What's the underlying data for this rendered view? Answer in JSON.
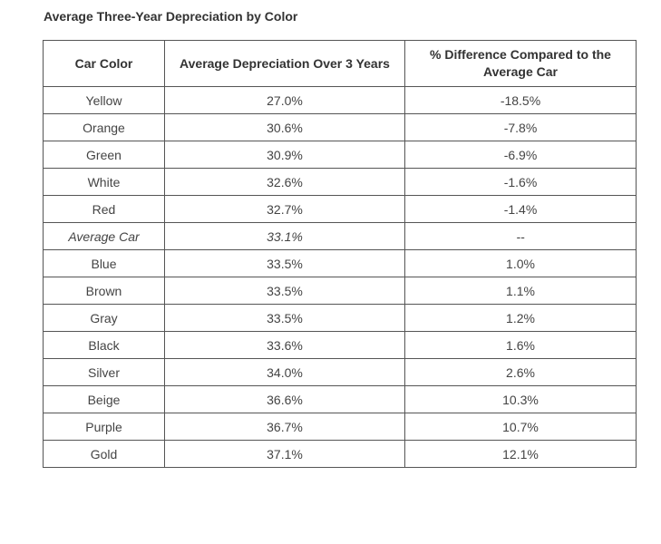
{
  "chart_data": {
    "type": "table",
    "title": "Average Three-Year Depreciation by Color",
    "columns": [
      "Car Color",
      "Average Depreciation Over 3 Years",
      "% Difference Compared to the Average Car"
    ],
    "rows": [
      {
        "color": "Yellow",
        "depreciation": "27.0%",
        "difference": "-18.5%",
        "italic": false
      },
      {
        "color": "Orange",
        "depreciation": "30.6%",
        "difference": "-7.8%",
        "italic": false
      },
      {
        "color": "Green",
        "depreciation": "30.9%",
        "difference": "-6.9%",
        "italic": false
      },
      {
        "color": "White",
        "depreciation": "32.6%",
        "difference": "-1.6%",
        "italic": false
      },
      {
        "color": "Red",
        "depreciation": "32.7%",
        "difference": "-1.4%",
        "italic": false
      },
      {
        "color": "Average Car",
        "depreciation": "33.1%",
        "difference": "--",
        "italic": true
      },
      {
        "color": "Blue",
        "depreciation": "33.5%",
        "difference": "1.0%",
        "italic": false
      },
      {
        "color": "Brown",
        "depreciation": "33.5%",
        "difference": "1.1%",
        "italic": false
      },
      {
        "color": "Gray",
        "depreciation": "33.5%",
        "difference": "1.2%",
        "italic": false
      },
      {
        "color": "Black",
        "depreciation": "33.6%",
        "difference": "1.6%",
        "italic": false
      },
      {
        "color": "Silver",
        "depreciation": "34.0%",
        "difference": "2.6%",
        "italic": false
      },
      {
        "color": "Beige",
        "depreciation": "36.6%",
        "difference": "10.3%",
        "italic": false
      },
      {
        "color": "Purple",
        "depreciation": "36.7%",
        "difference": "10.7%",
        "italic": false
      },
      {
        "color": "Gold",
        "depreciation": "37.1%",
        "difference": "12.1%",
        "italic": false
      }
    ]
  }
}
